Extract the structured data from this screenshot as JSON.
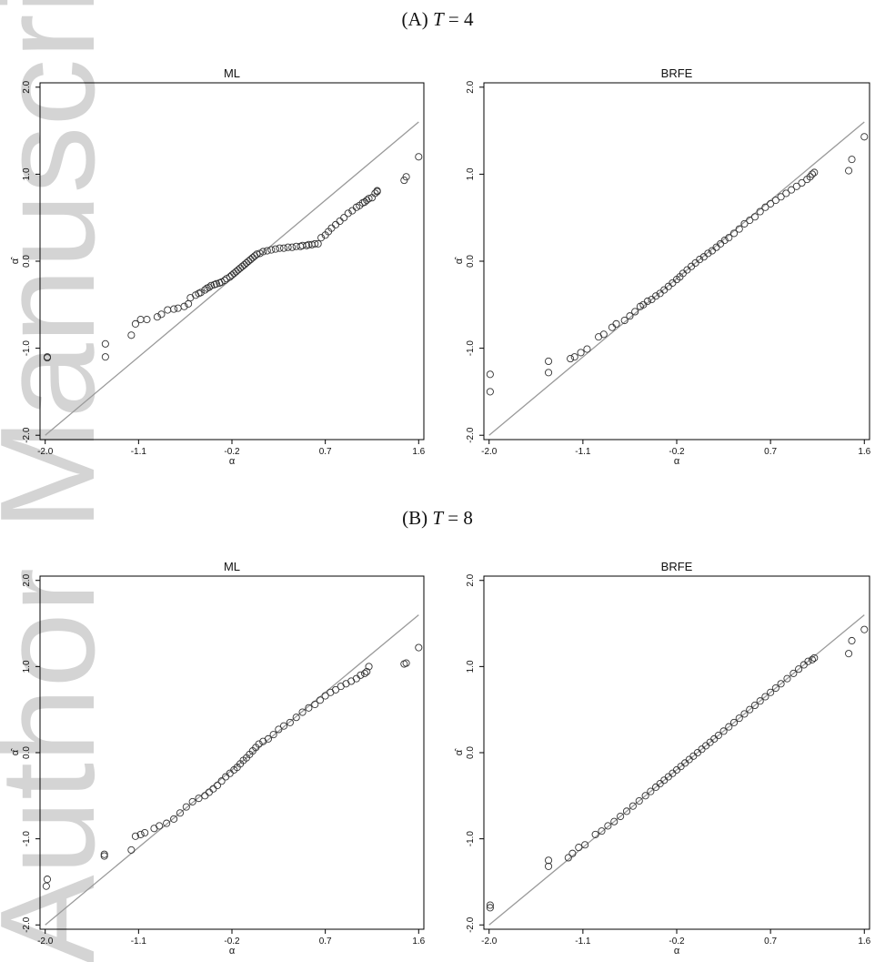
{
  "panels": [
    {
      "label": "(A)",
      "symbol": "T",
      "equals": "=",
      "value": "4"
    },
    {
      "label": "(B)",
      "symbol": "T",
      "equals": "=",
      "value": "8"
    }
  ],
  "watermark": {
    "text": "Author Manuscript",
    "color": "#b8b8b8"
  },
  "colors": {
    "line": "#9a9a9a",
    "marker": "#333333",
    "axis": "#000000"
  },
  "chart_data": [
    {
      "type": "scatter",
      "panel": "(A) T = 4",
      "title": "ML",
      "xlabel": "α",
      "ylabel": "α̂",
      "xlim": [
        -2.05,
        1.65
      ],
      "ylim": [
        -2.05,
        2.05
      ],
      "xticks": [
        -2.0,
        -1.1,
        -0.2,
        0.7,
        1.6
      ],
      "xticklabels": [
        "-2.0",
        "-1.1",
        "-0.2",
        "0.7",
        "1.6"
      ],
      "yticks": [
        -2.0,
        -1.0,
        0.0,
        1.0,
        2.0
      ],
      "yticklabels": [
        "-2.0",
        "-1.0",
        "0.0",
        "1.0",
        "2.0"
      ],
      "reference_line": {
        "x": [
          -2.0,
          1.6
        ],
        "y": [
          -2.0,
          1.6
        ]
      },
      "points": {
        "x": [
          -1.98,
          -1.98,
          -1.42,
          -1.42,
          -1.17,
          -1.13,
          -1.08,
          -1.02,
          -0.92,
          -0.88,
          -0.82,
          -0.76,
          -0.72,
          -0.66,
          -0.62,
          -0.6,
          -0.55,
          -0.52,
          -0.5,
          -0.46,
          -0.44,
          -0.42,
          -0.4,
          -0.37,
          -0.35,
          -0.32,
          -0.3,
          -0.27,
          -0.25,
          -0.22,
          -0.2,
          -0.18,
          -0.16,
          -0.14,
          -0.12,
          -0.1,
          -0.08,
          -0.06,
          -0.04,
          -0.02,
          0.0,
          0.02,
          0.04,
          0.07,
          0.1,
          0.14,
          0.18,
          0.22,
          0.26,
          0.3,
          0.34,
          0.38,
          0.42,
          0.46,
          0.48,
          0.52,
          0.54,
          0.57,
          0.6,
          0.63,
          0.66,
          0.7,
          0.73,
          0.76,
          0.8,
          0.84,
          0.88,
          0.92,
          0.96,
          1.0,
          1.03,
          1.06,
          1.08,
          1.1,
          1.12,
          1.15,
          1.18,
          1.2,
          1.2,
          1.46,
          1.48,
          1.6
        ],
        "y": [
          -1.1,
          -1.11,
          -0.95,
          -1.1,
          -0.85,
          -0.72,
          -0.67,
          -0.67,
          -0.64,
          -0.61,
          -0.56,
          -0.55,
          -0.54,
          -0.52,
          -0.49,
          -0.42,
          -0.39,
          -0.37,
          -0.36,
          -0.33,
          -0.31,
          -0.3,
          -0.28,
          -0.27,
          -0.26,
          -0.25,
          -0.24,
          -0.22,
          -0.2,
          -0.18,
          -0.16,
          -0.14,
          -0.12,
          -0.1,
          -0.08,
          -0.06,
          -0.04,
          -0.02,
          0.0,
          0.02,
          0.04,
          0.06,
          0.08,
          0.09,
          0.11,
          0.12,
          0.13,
          0.14,
          0.15,
          0.15,
          0.16,
          0.16,
          0.17,
          0.17,
          0.18,
          0.18,
          0.19,
          0.19,
          0.2,
          0.2,
          0.27,
          0.3,
          0.34,
          0.38,
          0.42,
          0.46,
          0.5,
          0.55,
          0.58,
          0.62,
          0.64,
          0.67,
          0.68,
          0.7,
          0.72,
          0.73,
          0.78,
          0.8,
          0.81,
          0.93,
          0.97,
          1.2
        ]
      }
    },
    {
      "type": "scatter",
      "panel": "(A) T = 4",
      "title": "BRFE",
      "xlabel": "α",
      "ylabel": "α̂",
      "xlim": [
        -2.05,
        1.65
      ],
      "ylim": [
        -2.05,
        2.05
      ],
      "xticks": [
        -2.0,
        -1.1,
        -0.2,
        0.7,
        1.6
      ],
      "xticklabels": [
        "-2.0",
        "-1.1",
        "-0.2",
        "0.7",
        "1.6"
      ],
      "yticks": [
        -2.0,
        -1.0,
        0.0,
        1.0,
        2.0
      ],
      "yticklabels": [
        "-2.0",
        "-1.0",
        "0.0",
        "1.0",
        "2.0"
      ],
      "reference_line": {
        "x": [
          -2.0,
          1.6
        ],
        "y": [
          -2.0,
          1.6
        ]
      },
      "points": {
        "x": [
          -1.99,
          -1.99,
          -1.43,
          -1.43,
          -1.22,
          -1.18,
          -1.12,
          -1.06,
          -0.95,
          -0.9,
          -0.82,
          -0.78,
          -0.7,
          -0.65,
          -0.6,
          -0.55,
          -0.52,
          -0.48,
          -0.44,
          -0.4,
          -0.36,
          -0.32,
          -0.28,
          -0.24,
          -0.2,
          -0.17,
          -0.14,
          -0.1,
          -0.06,
          -0.02,
          0.02,
          0.06,
          0.1,
          0.14,
          0.18,
          0.22,
          0.26,
          0.3,
          0.35,
          0.4,
          0.45,
          0.5,
          0.55,
          0.6,
          0.65,
          0.7,
          0.75,
          0.8,
          0.85,
          0.9,
          0.95,
          1.0,
          1.05,
          1.08,
          1.1,
          1.12,
          1.45,
          1.48,
          1.6
        ],
        "y": [
          -1.3,
          -1.5,
          -1.15,
          -1.28,
          -1.12,
          -1.1,
          -1.05,
          -1.01,
          -0.87,
          -0.84,
          -0.76,
          -0.72,
          -0.68,
          -0.63,
          -0.58,
          -0.52,
          -0.5,
          -0.46,
          -0.44,
          -0.4,
          -0.37,
          -0.33,
          -0.29,
          -0.25,
          -0.21,
          -0.18,
          -0.14,
          -0.1,
          -0.06,
          -0.02,
          0.02,
          0.05,
          0.09,
          0.12,
          0.16,
          0.2,
          0.24,
          0.27,
          0.32,
          0.37,
          0.43,
          0.47,
          0.51,
          0.57,
          0.62,
          0.66,
          0.7,
          0.74,
          0.78,
          0.82,
          0.86,
          0.9,
          0.94,
          0.97,
          1.0,
          1.02,
          1.04,
          1.17,
          1.43
        ]
      }
    },
    {
      "type": "scatter",
      "panel": "(B) T = 8",
      "title": "ML",
      "xlabel": "α",
      "ylabel": "α̂",
      "xlim": [
        -2.05,
        1.65
      ],
      "ylim": [
        -2.05,
        2.05
      ],
      "xticks": [
        -2.0,
        -1.1,
        -0.2,
        0.7,
        1.6
      ],
      "xticklabels": [
        "-2.0",
        "-1.1",
        "-0.2",
        "0.7",
        "1.6"
      ],
      "yticks": [
        -2.0,
        -1.0,
        0.0,
        1.0,
        2.0
      ],
      "yticklabels": [
        "-2.0",
        "-1.0",
        "0.0",
        "1.0",
        "2.0"
      ],
      "reference_line": {
        "x": [
          -2.0,
          1.6
        ],
        "y": [
          -2.0,
          1.6
        ]
      },
      "points": {
        "x": [
          -1.99,
          -1.98,
          -1.43,
          -1.43,
          -1.17,
          -1.13,
          -1.08,
          -1.04,
          -0.95,
          -0.9,
          -0.83,
          -0.76,
          -0.7,
          -0.64,
          -0.58,
          -0.52,
          -0.46,
          -0.42,
          -0.38,
          -0.34,
          -0.3,
          -0.26,
          -0.22,
          -0.18,
          -0.15,
          -0.12,
          -0.09,
          -0.06,
          -0.03,
          0.0,
          0.03,
          0.06,
          0.1,
          0.15,
          0.2,
          0.25,
          0.3,
          0.36,
          0.42,
          0.48,
          0.54,
          0.6,
          0.65,
          0.7,
          0.75,
          0.8,
          0.85,
          0.9,
          0.95,
          1.0,
          1.04,
          1.08,
          1.1,
          1.12,
          1.46,
          1.48,
          1.6
        ],
        "y": [
          -1.55,
          -1.47,
          -1.18,
          -1.2,
          -1.13,
          -0.97,
          -0.95,
          -0.93,
          -0.88,
          -0.85,
          -0.82,
          -0.77,
          -0.7,
          -0.63,
          -0.57,
          -0.53,
          -0.5,
          -0.46,
          -0.42,
          -0.38,
          -0.33,
          -0.28,
          -0.24,
          -0.2,
          -0.17,
          -0.13,
          -0.09,
          -0.06,
          -0.02,
          0.02,
          0.06,
          0.1,
          0.13,
          0.16,
          0.21,
          0.27,
          0.31,
          0.35,
          0.41,
          0.47,
          0.52,
          0.56,
          0.61,
          0.66,
          0.7,
          0.73,
          0.77,
          0.8,
          0.83,
          0.86,
          0.9,
          0.92,
          0.94,
          1.0,
          1.03,
          1.04,
          1.22
        ]
      }
    },
    {
      "type": "scatter",
      "panel": "(B) T = 8",
      "title": "BRFE",
      "xlabel": "α",
      "ylabel": "α̂",
      "xlim": [
        -2.05,
        1.65
      ],
      "ylim": [
        -2.05,
        2.05
      ],
      "xticks": [
        -2.0,
        -1.1,
        -0.2,
        0.7,
        1.6
      ],
      "xticklabels": [
        "-2.0",
        "-1.1",
        "-0.2",
        "0.7",
        "1.6"
      ],
      "yticks": [
        -2.0,
        -1.0,
        0.0,
        1.0,
        2.0
      ],
      "yticklabels": [
        "-2.0",
        "-1.0",
        "0.0",
        "1.0",
        "2.0"
      ],
      "reference_line": {
        "x": [
          -2.0,
          1.6
        ],
        "y": [
          -2.0,
          1.6
        ]
      },
      "points": {
        "x": [
          -1.99,
          -1.99,
          -1.43,
          -1.43,
          -1.24,
          -1.2,
          -1.14,
          -1.08,
          -0.98,
          -0.92,
          -0.86,
          -0.8,
          -0.74,
          -0.68,
          -0.62,
          -0.56,
          -0.5,
          -0.45,
          -0.4,
          -0.36,
          -0.32,
          -0.28,
          -0.24,
          -0.2,
          -0.16,
          -0.12,
          -0.08,
          -0.04,
          0.0,
          0.04,
          0.08,
          0.12,
          0.16,
          0.2,
          0.25,
          0.3,
          0.35,
          0.4,
          0.45,
          0.5,
          0.55,
          0.6,
          0.65,
          0.7,
          0.75,
          0.8,
          0.86,
          0.92,
          0.97,
          1.02,
          1.06,
          1.1,
          1.12,
          1.45,
          1.48,
          1.6
        ],
        "y": [
          -1.8,
          -1.77,
          -1.32,
          -1.25,
          -1.22,
          -1.17,
          -1.1,
          -1.07,
          -0.95,
          -0.91,
          -0.85,
          -0.8,
          -0.74,
          -0.68,
          -0.62,
          -0.56,
          -0.5,
          -0.45,
          -0.4,
          -0.36,
          -0.32,
          -0.28,
          -0.24,
          -0.2,
          -0.16,
          -0.12,
          -0.08,
          -0.04,
          0.0,
          0.04,
          0.08,
          0.12,
          0.16,
          0.2,
          0.25,
          0.3,
          0.35,
          0.4,
          0.45,
          0.5,
          0.55,
          0.6,
          0.65,
          0.7,
          0.75,
          0.8,
          0.86,
          0.92,
          0.97,
          1.02,
          1.06,
          1.08,
          1.1,
          1.15,
          1.3,
          1.43
        ]
      }
    }
  ]
}
